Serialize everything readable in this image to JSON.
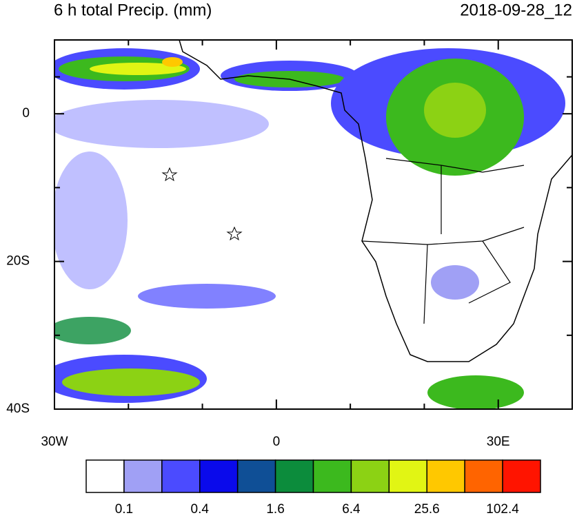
{
  "header": {
    "title": "6 h total Precip. (mm)",
    "valid_time": "2018-09-28_12"
  },
  "map": {
    "lonlim": [
      -30,
      40
    ],
    "latlim": [
      -40,
      10
    ],
    "lon_ticks": [
      {
        "value": -30,
        "label": "30W"
      },
      0,
      {
        "value": 30,
        "label": "30E"
      }
    ],
    "lon_minor_ticks": [
      -20,
      -10,
      10,
      20
    ],
    "lat_ticks": [
      0,
      {
        "value": -20,
        "label": "20S"
      },
      {
        "value": -40,
        "label": "40S"
      }
    ],
    "lat_minor_ticks": [
      5,
      -10,
      -30
    ]
  },
  "colorbar": {
    "labels": [
      0.1,
      0.4,
      1.6,
      6.4,
      25.6,
      102.4
    ],
    "colors": [
      "#ffffff",
      "#a0a0f5",
      "#4b4bff",
      "#0a0aeb",
      "#0f4f96",
      "#0c8c3c",
      "#3cb91e",
      "#8cd214",
      "#e1f514",
      "#ffc800",
      "#ff6400",
      "#ff1400"
    ]
  }
}
